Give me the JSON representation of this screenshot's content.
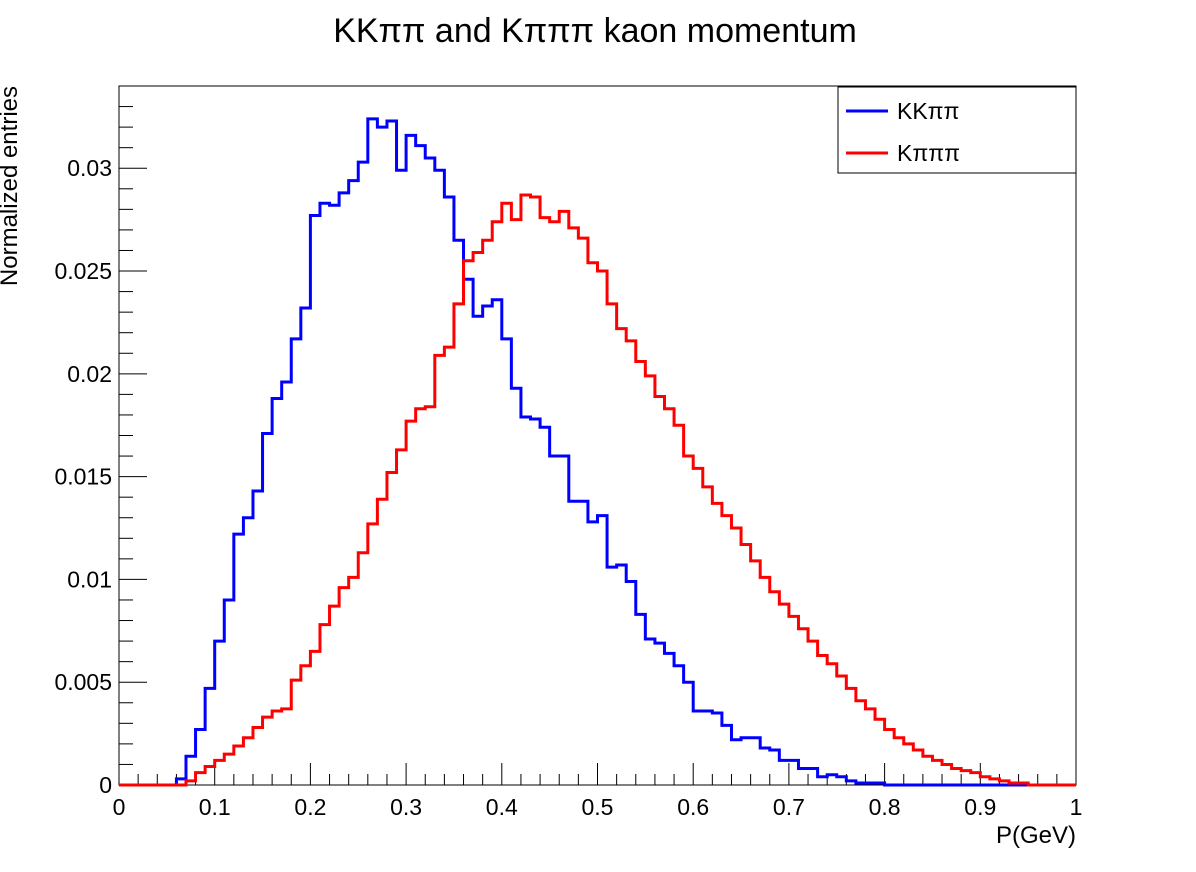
{
  "chart_data": {
    "type": "line",
    "title": "KKππ and Kπππ kaon momentum",
    "xlabel": "P(GeV)",
    "ylabel": "Normalized entries",
    "xlim": [
      0,
      1
    ],
    "ylim": [
      0,
      0.034
    ],
    "x_ticks": [
      "0",
      "0.1",
      "0.2",
      "0.3",
      "0.4",
      "0.5",
      "0.6",
      "0.7",
      "0.8",
      "0.9",
      "1"
    ],
    "y_ticks": [
      "0",
      "0.005",
      "0.01",
      "0.015",
      "0.02",
      "0.025",
      "0.03"
    ],
    "grid": false,
    "legend_position": "top-right",
    "bin_width": 0.01,
    "series": [
      {
        "name": "KKππ",
        "color": "#0000ff",
        "values": [
          0,
          0,
          0,
          0,
          0,
          0,
          0.0003,
          0.0014,
          0.0027,
          0.0047,
          0.007,
          0.009,
          0.0122,
          0.013,
          0.0143,
          0.0171,
          0.0188,
          0.0196,
          0.0217,
          0.0232,
          0.0277,
          0.0283,
          0.0282,
          0.0288,
          0.0294,
          0.0303,
          0.0324,
          0.032,
          0.0323,
          0.0299,
          0.0316,
          0.0311,
          0.0305,
          0.0299,
          0.0286,
          0.0265,
          0.0246,
          0.0228,
          0.0233,
          0.0236,
          0.0217,
          0.0193,
          0.0179,
          0.0178,
          0.0174,
          0.016,
          0.016,
          0.0138,
          0.0138,
          0.0128,
          0.0131,
          0.0106,
          0.0107,
          0.0099,
          0.0083,
          0.0071,
          0.0069,
          0.0064,
          0.0058,
          0.005,
          0.0036,
          0.0036,
          0.0035,
          0.0029,
          0.0022,
          0.0023,
          0.0023,
          0.0018,
          0.0017,
          0.0012,
          0.0012,
          0.0008,
          0.0008,
          0.0004,
          0.0005,
          0.0004,
          0.0002,
          0.0001,
          0.0001,
          0.0001,
          0,
          0,
          0,
          0,
          0,
          0,
          0,
          0,
          0,
          0,
          0,
          0,
          0,
          0,
          0,
          0,
          0,
          0,
          0,
          0
        ]
      },
      {
        "name": "Kπππ",
        "color": "#ff0000",
        "values": [
          0,
          0,
          0,
          0,
          0,
          0,
          0,
          0.0002,
          0.0006,
          0.0009,
          0.0012,
          0.0015,
          0.0019,
          0.0023,
          0.0028,
          0.0033,
          0.0036,
          0.0037,
          0.0051,
          0.0058,
          0.0065,
          0.0078,
          0.0087,
          0.0096,
          0.0101,
          0.0113,
          0.0127,
          0.0139,
          0.0152,
          0.0163,
          0.0177,
          0.0183,
          0.0184,
          0.0209,
          0.0213,
          0.0234,
          0.0255,
          0.0259,
          0.0265,
          0.0274,
          0.0283,
          0.0275,
          0.0287,
          0.0286,
          0.0276,
          0.0274,
          0.0279,
          0.0271,
          0.0266,
          0.0254,
          0.025,
          0.0234,
          0.0222,
          0.0216,
          0.0206,
          0.0199,
          0.0189,
          0.0183,
          0.0175,
          0.016,
          0.0154,
          0.0145,
          0.0137,
          0.0131,
          0.0125,
          0.0117,
          0.0109,
          0.0101,
          0.0094,
          0.0088,
          0.0082,
          0.0076,
          0.007,
          0.0063,
          0.0059,
          0.0053,
          0.0047,
          0.0041,
          0.0037,
          0.0032,
          0.0027,
          0.0023,
          0.002,
          0.0017,
          0.0014,
          0.0012,
          0.001,
          0.0008,
          0.0007,
          0.0006,
          0.0004,
          0.0003,
          0.0002,
          0.0001,
          0.0001,
          0,
          0,
          0,
          0,
          0
        ]
      }
    ]
  }
}
